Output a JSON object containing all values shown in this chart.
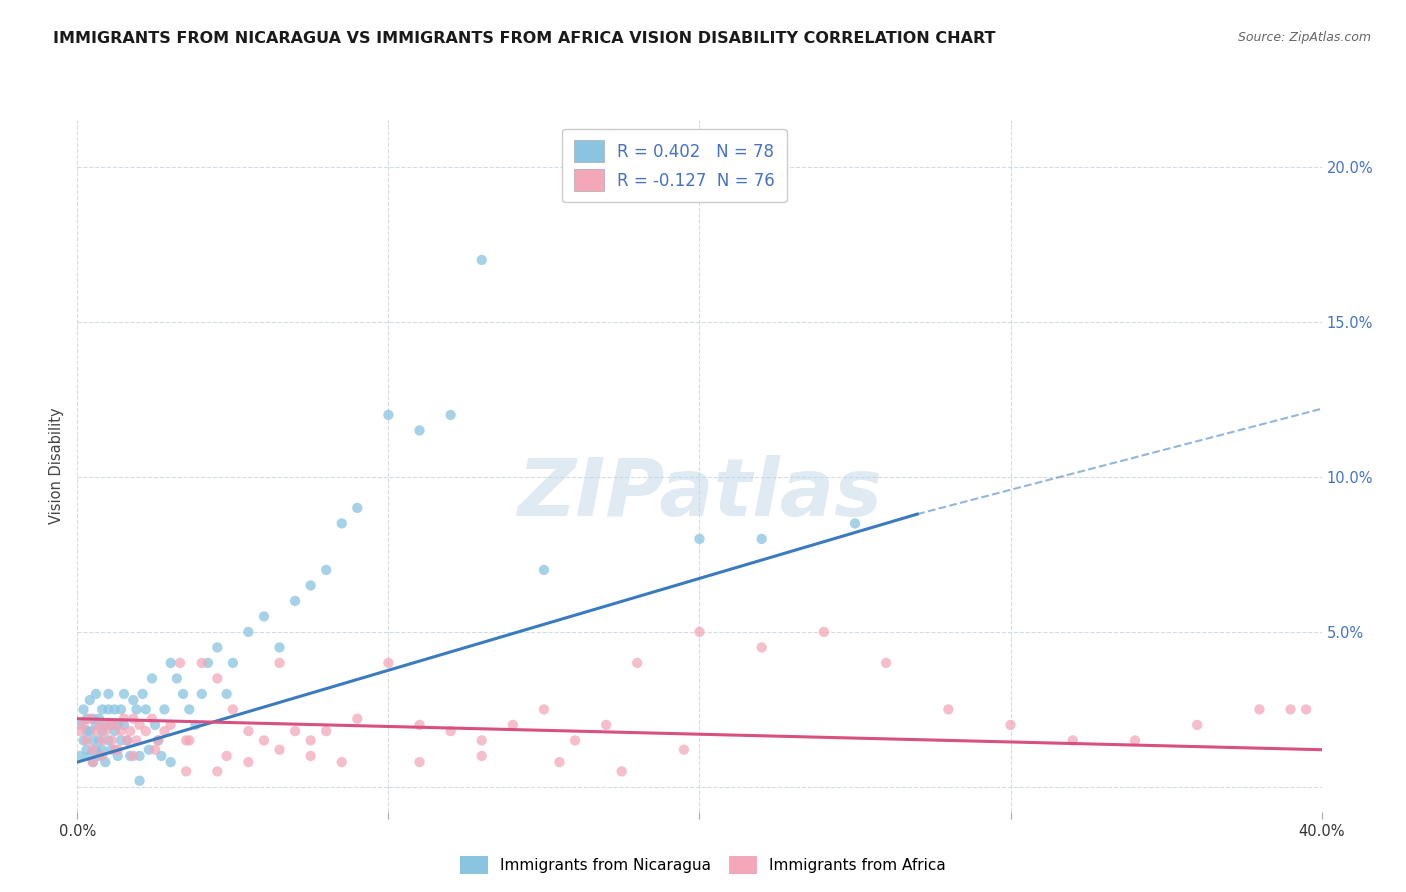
{
  "title": "IMMIGRANTS FROM NICARAGUA VS IMMIGRANTS FROM AFRICA VISION DISABILITY CORRELATION CHART",
  "source": "Source: ZipAtlas.com",
  "ylabel": "Vision Disability",
  "xlim": [
    0.0,
    0.4
  ],
  "ylim": [
    -0.008,
    0.215
  ],
  "yticks": [
    0.0,
    0.05,
    0.1,
    0.15,
    0.2
  ],
  "xticks": [
    0.0,
    0.1,
    0.2,
    0.3,
    0.4
  ],
  "xtick_labels": [
    "0.0%",
    "",
    "",
    "",
    "40.0%"
  ],
  "ytick_labels_right": [
    "",
    "5.0%",
    "10.0%",
    "15.0%",
    "20.0%"
  ],
  "r1": 0.402,
  "n1": 78,
  "r2": -0.127,
  "n2": 76,
  "color1": "#89c4e1",
  "color2": "#f4a7b9",
  "line_color1": "#3a7bbf",
  "line_color2": "#d85080",
  "trend1_x0": 0.0,
  "trend1_y0": 0.008,
  "trend1_x1": 0.27,
  "trend1_y1": 0.088,
  "trend1_dash_x1": 0.4,
  "trend1_dash_y1": 0.122,
  "trend2_x0": 0.0,
  "trend2_y0": 0.022,
  "trend2_x1": 0.4,
  "trend2_y1": 0.012,
  "scatter1_x": [
    0.001,
    0.001,
    0.002,
    0.002,
    0.003,
    0.003,
    0.003,
    0.004,
    0.004,
    0.004,
    0.005,
    0.005,
    0.005,
    0.006,
    0.006,
    0.006,
    0.007,
    0.007,
    0.007,
    0.008,
    0.008,
    0.008,
    0.009,
    0.009,
    0.01,
    0.01,
    0.01,
    0.011,
    0.011,
    0.012,
    0.012,
    0.013,
    0.013,
    0.014,
    0.014,
    0.015,
    0.015,
    0.016,
    0.017,
    0.018,
    0.019,
    0.02,
    0.021,
    0.022,
    0.023,
    0.024,
    0.025,
    0.026,
    0.027,
    0.028,
    0.03,
    0.032,
    0.034,
    0.036,
    0.038,
    0.04,
    0.042,
    0.045,
    0.048,
    0.05,
    0.055,
    0.06,
    0.065,
    0.07,
    0.075,
    0.08,
    0.085,
    0.09,
    0.1,
    0.11,
    0.12,
    0.13,
    0.15,
    0.2,
    0.22,
    0.25,
    0.03,
    0.02
  ],
  "scatter1_y": [
    0.01,
    0.02,
    0.015,
    0.025,
    0.012,
    0.018,
    0.022,
    0.01,
    0.018,
    0.028,
    0.015,
    0.022,
    0.008,
    0.02,
    0.012,
    0.03,
    0.015,
    0.022,
    0.01,
    0.018,
    0.025,
    0.012,
    0.02,
    0.008,
    0.025,
    0.015,
    0.03,
    0.012,
    0.02,
    0.018,
    0.025,
    0.01,
    0.02,
    0.015,
    0.025,
    0.02,
    0.03,
    0.015,
    0.01,
    0.028,
    0.025,
    0.01,
    0.03,
    0.025,
    0.012,
    0.035,
    0.02,
    0.015,
    0.01,
    0.025,
    0.04,
    0.035,
    0.03,
    0.025,
    0.02,
    0.03,
    0.04,
    0.045,
    0.03,
    0.04,
    0.05,
    0.055,
    0.045,
    0.06,
    0.065,
    0.07,
    0.085,
    0.09,
    0.12,
    0.115,
    0.12,
    0.17,
    0.07,
    0.08,
    0.08,
    0.085,
    0.008,
    0.002
  ],
  "scatter2_x": [
    0.001,
    0.002,
    0.003,
    0.004,
    0.005,
    0.006,
    0.007,
    0.008,
    0.009,
    0.01,
    0.011,
    0.012,
    0.013,
    0.014,
    0.015,
    0.016,
    0.017,
    0.018,
    0.019,
    0.02,
    0.022,
    0.024,
    0.026,
    0.028,
    0.03,
    0.033,
    0.036,
    0.04,
    0.045,
    0.05,
    0.055,
    0.06,
    0.065,
    0.07,
    0.075,
    0.08,
    0.09,
    0.1,
    0.11,
    0.12,
    0.13,
    0.14,
    0.15,
    0.16,
    0.17,
    0.18,
    0.2,
    0.22,
    0.24,
    0.26,
    0.28,
    0.3,
    0.32,
    0.34,
    0.36,
    0.38,
    0.39,
    0.005,
    0.008,
    0.012,
    0.018,
    0.025,
    0.035,
    0.048,
    0.055,
    0.065,
    0.075,
    0.085,
    0.11,
    0.13,
    0.155,
    0.175,
    0.195,
    0.395,
    0.035,
    0.045
  ],
  "scatter2_y": [
    0.018,
    0.02,
    0.015,
    0.022,
    0.012,
    0.018,
    0.02,
    0.015,
    0.018,
    0.02,
    0.015,
    0.02,
    0.012,
    0.018,
    0.022,
    0.015,
    0.018,
    0.022,
    0.015,
    0.02,
    0.018,
    0.022,
    0.015,
    0.018,
    0.02,
    0.04,
    0.015,
    0.04,
    0.035,
    0.025,
    0.018,
    0.015,
    0.04,
    0.018,
    0.015,
    0.018,
    0.022,
    0.04,
    0.02,
    0.018,
    0.015,
    0.02,
    0.025,
    0.015,
    0.02,
    0.04,
    0.05,
    0.045,
    0.05,
    0.04,
    0.025,
    0.02,
    0.015,
    0.015,
    0.02,
    0.025,
    0.025,
    0.008,
    0.01,
    0.012,
    0.01,
    0.012,
    0.015,
    0.01,
    0.008,
    0.012,
    0.01,
    0.008,
    0.008,
    0.01,
    0.008,
    0.005,
    0.012,
    0.025,
    0.005,
    0.005
  ],
  "watermark": "ZIPatlas",
  "bg_color": "#ffffff",
  "grid_color": "#d0d8e0"
}
